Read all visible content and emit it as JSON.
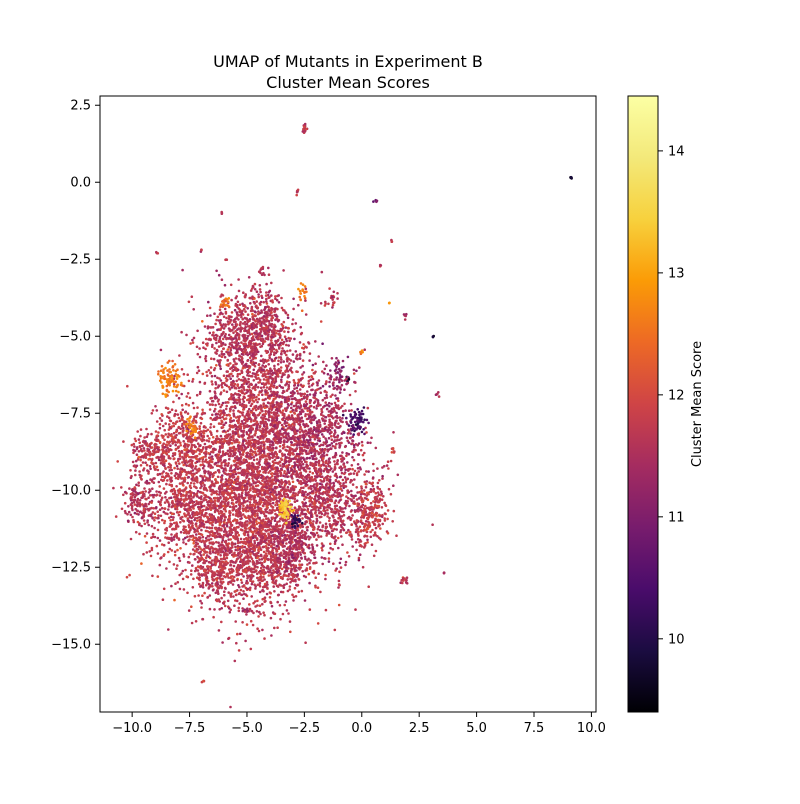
{
  "chart_data": {
    "type": "scatter",
    "title_lines": [
      "UMAP of Mutants in Experiment B",
      "Cluster Mean Scores"
    ],
    "xlabel": "",
    "ylabel": "",
    "xlim": [
      -11.4,
      10.2
    ],
    "ylim": [
      -17.2,
      2.8
    ],
    "x_ticks": [
      -10.0,
      -7.5,
      -5.0,
      -2.5,
      0.0,
      2.5,
      5.0,
      7.5,
      10.0
    ],
    "x_tick_labels": [
      "−10.0",
      "−7.5",
      "−5.0",
      "−2.5",
      "0.0",
      "2.5",
      "5.0",
      "7.5",
      "10.0"
    ],
    "y_ticks": [
      2.5,
      0.0,
      -2.5,
      -5.0,
      -7.5,
      -10.0,
      -12.5,
      -15.0
    ],
    "y_tick_labels": [
      "2.5",
      "0.0",
      "−2.5",
      "−5.0",
      "−7.5",
      "−10.0",
      "−12.5",
      "−15.0"
    ],
    "grid": false,
    "colormap": "inferno",
    "colorbar": {
      "label": "Cluster Mean Score",
      "range": [
        9.4,
        14.45
      ],
      "ticks": [
        10,
        11,
        12,
        13,
        14
      ],
      "tick_labels": [
        "10",
        "11",
        "12",
        "13",
        "14"
      ]
    },
    "clusters": [
      {
        "x": -4.8,
        "y": -10.2,
        "sx": 1.6,
        "sy": 1.7,
        "n": 3200,
        "score": 11.7
      },
      {
        "x": -4.5,
        "y": -7.0,
        "sx": 1.4,
        "sy": 1.3,
        "n": 1100,
        "score": 11.7
      },
      {
        "x": -5.2,
        "y": -5.0,
        "sx": 0.9,
        "sy": 0.7,
        "n": 500,
        "score": 11.6
      },
      {
        "x": -2.2,
        "y": -8.2,
        "sx": 1.0,
        "sy": 1.0,
        "n": 700,
        "score": 11.5
      },
      {
        "x": -1.2,
        "y": -10.3,
        "sx": 1.0,
        "sy": 0.9,
        "n": 600,
        "score": 11.6
      },
      {
        "x": -7.5,
        "y": -10.6,
        "sx": 1.0,
        "sy": 0.9,
        "n": 600,
        "score": 11.7
      },
      {
        "x": -7.8,
        "y": -8.4,
        "sx": 0.6,
        "sy": 0.6,
        "n": 300,
        "score": 11.8
      },
      {
        "x": -9.2,
        "y": -8.8,
        "sx": 0.5,
        "sy": 0.3,
        "n": 150,
        "score": 11.7
      },
      {
        "x": -9.6,
        "y": -10.4,
        "sx": 0.4,
        "sy": 0.4,
        "n": 150,
        "score": 11.6
      },
      {
        "x": -4.3,
        "y": -12.3,
        "sx": 1.0,
        "sy": 0.6,
        "n": 400,
        "score": 11.7
      },
      {
        "x": -6.3,
        "y": -12.5,
        "sx": 0.5,
        "sy": 0.5,
        "n": 200,
        "score": 11.7
      },
      {
        "x": 0.3,
        "y": -10.8,
        "sx": 0.4,
        "sy": 0.5,
        "n": 200,
        "score": 11.8
      },
      {
        "x": -3.0,
        "y": -11.8,
        "sx": 0.5,
        "sy": 0.5,
        "n": 200,
        "score": 11.5
      },
      {
        "x": -4.2,
        "y": -4.5,
        "sx": 0.5,
        "sy": 0.6,
        "n": 200,
        "score": 11.6
      },
      {
        "x": -8.4,
        "y": -6.4,
        "sx": 0.25,
        "sy": 0.25,
        "n": 80,
        "score": 12.6
      },
      {
        "x": -3.3,
        "y": -10.6,
        "sx": 0.15,
        "sy": 0.15,
        "n": 60,
        "score": 13.4
      },
      {
        "x": -0.2,
        "y": -7.8,
        "sx": 0.2,
        "sy": 0.2,
        "n": 70,
        "score": 10.4
      },
      {
        "x": -2.9,
        "y": -11.0,
        "sx": 0.12,
        "sy": 0.12,
        "n": 30,
        "score": 10.2
      },
      {
        "x": -2.5,
        "y": 1.75,
        "sx": 0.05,
        "sy": 0.08,
        "n": 15,
        "score": 11.7
      },
      {
        "x": -2.8,
        "y": -0.3,
        "sx": 0.03,
        "sy": 0.05,
        "n": 6,
        "score": 11.7
      },
      {
        "x": -6.1,
        "y": -1.0,
        "sx": 0.02,
        "sy": 0.02,
        "n": 3,
        "score": 11.7
      },
      {
        "x": 0.6,
        "y": -0.6,
        "sx": 0.03,
        "sy": 0.03,
        "n": 4,
        "score": 11.0
      },
      {
        "x": -8.9,
        "y": -2.3,
        "sx": 0.03,
        "sy": 0.03,
        "n": 3,
        "score": 11.7
      },
      {
        "x": -7.0,
        "y": -2.2,
        "sx": 0.03,
        "sy": 0.03,
        "n": 3,
        "score": 11.7
      },
      {
        "x": 1.3,
        "y": -1.9,
        "sx": 0.02,
        "sy": 0.02,
        "n": 3,
        "score": 11.7
      },
      {
        "x": 9.1,
        "y": 0.15,
        "sx": 0.02,
        "sy": 0.02,
        "n": 5,
        "score": 9.5
      },
      {
        "x": 3.1,
        "y": -5.0,
        "sx": 0.02,
        "sy": 0.02,
        "n": 3,
        "score": 9.8
      },
      {
        "x": 1.9,
        "y": -4.4,
        "sx": 0.03,
        "sy": 0.05,
        "n": 5,
        "score": 11.5
      },
      {
        "x": 0.8,
        "y": -2.7,
        "sx": 0.02,
        "sy": 0.02,
        "n": 3,
        "score": 11.6
      },
      {
        "x": 1.2,
        "y": -3.9,
        "sx": 0.02,
        "sy": 0.02,
        "n": 3,
        "score": 12.9
      },
      {
        "x": -2.6,
        "y": -3.6,
        "sx": 0.1,
        "sy": 0.2,
        "n": 20,
        "score": 12.6
      },
      {
        "x": -1.3,
        "y": -3.8,
        "sx": 0.2,
        "sy": 0.2,
        "n": 20,
        "score": 11.7
      },
      {
        "x": 1.9,
        "y": -12.9,
        "sx": 0.08,
        "sy": 0.08,
        "n": 12,
        "score": 11.7
      },
      {
        "x": 3.6,
        "y": -12.7,
        "sx": 0.02,
        "sy": 0.02,
        "n": 3,
        "score": 11.7
      },
      {
        "x": -6.9,
        "y": -16.2,
        "sx": 0.03,
        "sy": 0.03,
        "n": 5,
        "score": 11.7
      },
      {
        "x": -5.0,
        "y": -13.9,
        "sx": 0.08,
        "sy": 0.08,
        "n": 10,
        "score": 11.4
      },
      {
        "x": 3.3,
        "y": -6.9,
        "sx": 0.05,
        "sy": 0.05,
        "n": 5,
        "score": 11.6
      },
      {
        "x": 1.4,
        "y": -8.7,
        "sx": 0.05,
        "sy": 0.05,
        "n": 6,
        "score": 11.8
      },
      {
        "x": -5.9,
        "y": -2.5,
        "sx": 0.03,
        "sy": 0.03,
        "n": 3,
        "score": 11.7
      },
      {
        "x": -4.4,
        "y": -2.9,
        "sx": 0.1,
        "sy": 0.1,
        "n": 10,
        "score": 11.6
      },
      {
        "x": 0.0,
        "y": -5.5,
        "sx": 0.05,
        "sy": 0.05,
        "n": 5,
        "score": 12.6
      },
      {
        "x": -0.6,
        "y": -6.4,
        "sx": 0.05,
        "sy": 0.05,
        "n": 5,
        "score": 9.8
      },
      {
        "x": -7.4,
        "y": -8.0,
        "sx": 0.15,
        "sy": 0.15,
        "n": 30,
        "score": 12.6
      },
      {
        "x": -6.0,
        "y": -3.9,
        "sx": 0.15,
        "sy": 0.1,
        "n": 20,
        "score": 12.5
      },
      {
        "x": -1.0,
        "y": -6.2,
        "sx": 0.3,
        "sy": 0.3,
        "n": 60,
        "score": 11.2
      }
    ]
  }
}
